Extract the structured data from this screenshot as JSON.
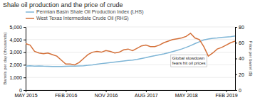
{
  "chart_data": {
    "type": "line",
    "title": "Shale oil production and the price of crude",
    "ylabel": "Barrels per day (thousands)",
    "y2label": "Price per barrel ($)",
    "annotation": "Global slowdown\nfears hit oil prices",
    "x": [
      0,
      1,
      2,
      3,
      4,
      5,
      6,
      7,
      8,
      9,
      10,
      11,
      12,
      13,
      14,
      15,
      16,
      17,
      18,
      19,
      20,
      21,
      22,
      23,
      24,
      25,
      26,
      27,
      28,
      29,
      30,
      31,
      32,
      33,
      34,
      35,
      36,
      37,
      38,
      39,
      40,
      41,
      42,
      43,
      44,
      45,
      46,
      47
    ],
    "xlim": [
      0,
      47
    ],
    "xticks": [
      {
        "value": 0,
        "label": "MAY 2015"
      },
      {
        "value": 9,
        "label": "FEB 2016"
      },
      {
        "value": 18,
        "label": "NOV 2016"
      },
      {
        "value": 27,
        "label": "AUG 2017"
      },
      {
        "value": 36,
        "label": "MAY 2018"
      },
      {
        "value": 45,
        "label": "FEB 2019"
      }
    ],
    "ylim": [
      0,
      5000
    ],
    "yticks": [
      0,
      {
        "value": 1000,
        "label": "1,000"
      },
      {
        "value": 2000,
        "label": "2,000"
      },
      {
        "value": 3000,
        "label": "3,000"
      },
      {
        "value": 4000,
        "label": "4,000"
      },
      {
        "value": 5000,
        "label": "5,000"
      }
    ],
    "y2lim": [
      0,
      80
    ],
    "y2ticks": [
      0,
      20,
      40,
      60,
      80
    ],
    "grid": true,
    "legend": "top-left",
    "series": [
      {
        "name": "Permian Basin Shale Oil Production Index (LHS)",
        "color": "#7eb5d6",
        "values": [
          1900,
          1920,
          1900,
          1910,
          1890,
          1880,
          1870,
          1870,
          1870,
          1880,
          1890,
          1890,
          1910,
          1930,
          1960,
          2000,
          2050,
          2100,
          2140,
          2180,
          2220,
          2260,
          2300,
          2340,
          2380,
          2430,
          2500,
          2570,
          2650,
          2720,
          2800,
          2870,
          2950,
          3050,
          3150,
          3250,
          3380,
          3520,
          3680,
          3830,
          3970,
          4050,
          4100,
          4130,
          4170,
          4200,
          4230,
          4280
        ]
      },
      {
        "name": "West Texas Intermediate Crude Oil (RHS)",
        "color": "#d4713a",
        "axis": "y2",
        "values": [
          59,
          57,
          49,
          47,
          46,
          47,
          45,
          43,
          38,
          33,
          33,
          32,
          35,
          40,
          45,
          48,
          49,
          48,
          50,
          49,
          47,
          48,
          51,
          52,
          50,
          53,
          56,
          57,
          55,
          55,
          57,
          60,
          62,
          64,
          65,
          66,
          68,
          72,
          66,
          64,
          55,
          43,
          47,
          52,
          54,
          57,
          60,
          62
        ]
      }
    ]
  }
}
